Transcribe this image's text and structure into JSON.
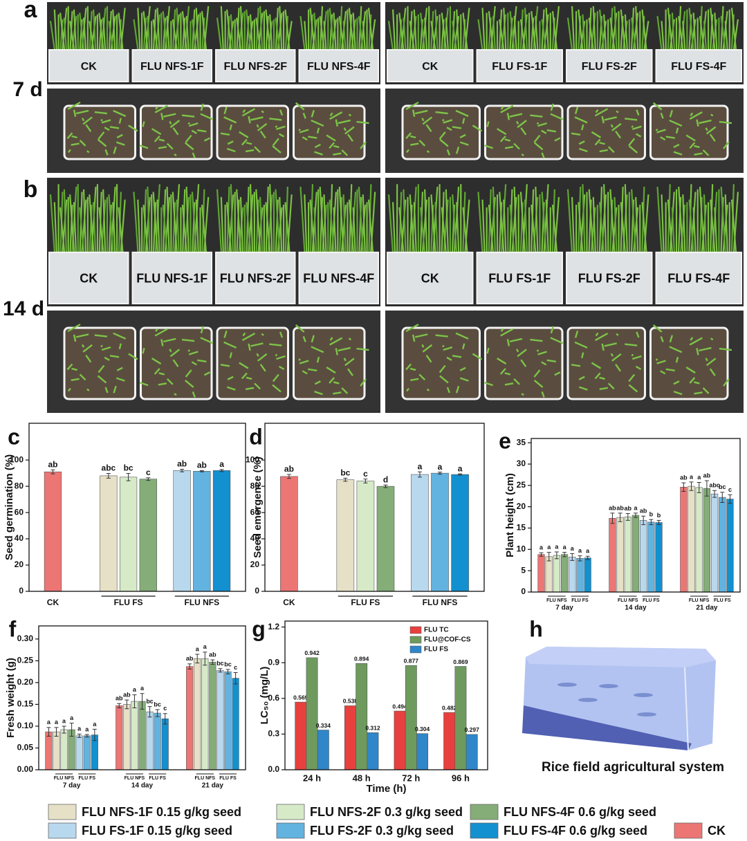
{
  "photos": [
    {
      "label": "a",
      "day": "7 d",
      "left": [
        "CK",
        "FLU NFS-1F",
        "FLU NFS-2F",
        "FLU NFS-4F"
      ],
      "right": [
        "CK",
        "FLU FS-1F",
        "FLU FS-2F",
        "FLU FS-4F"
      ]
    },
    {
      "label": "b",
      "day": "14 d",
      "left": [
        "CK",
        "FLU NFS-1F",
        "FLU NFS-2F",
        "FLU NFS-4F"
      ],
      "right": [
        "CK",
        "FLU FS-1F",
        "FLU FS-2F",
        "FLU FS-4F"
      ]
    }
  ],
  "chart_data": [
    {
      "type": "bar",
      "panel": "c",
      "y_label": "Seed germination (%)",
      "ylim": [
        0,
        128
      ],
      "yticks": [
        0,
        20,
        40,
        60,
        80,
        100
      ],
      "groups": [
        {
          "label": "CK",
          "values": [
            91
          ],
          "errors": [
            1.5
          ],
          "letters": [
            "ab"
          ],
          "colors": [
            "#ec7674"
          ]
        },
        {
          "label": "FLU FS",
          "values": [
            88,
            87,
            85.5
          ],
          "errors": [
            1.8,
            2.8,
            1
          ],
          "letters": [
            "abc",
            "bc",
            "c"
          ],
          "colors": [
            "#e6e0c6",
            "#d6eac8",
            "#84ad78"
          ]
        },
        {
          "label": "FLU NFS",
          "values": [
            92,
            91.5,
            92
          ],
          "errors": [
            1,
            0.5,
            0.8
          ],
          "letters": [
            "ab",
            "ab",
            "a"
          ],
          "colors": [
            "#b8d8ee",
            "#62b3e0",
            "#1290d0"
          ]
        }
      ]
    },
    {
      "type": "bar",
      "panel": "d",
      "y_label": "Seed emergence (%)",
      "ylim": [
        0,
        128
      ],
      "yticks": [
        0,
        20,
        40,
        60,
        80,
        100
      ],
      "groups": [
        {
          "label": "CK",
          "values": [
            87.5
          ],
          "errors": [
            1.5
          ],
          "letters": [
            "ab"
          ],
          "colors": [
            "#ec7674"
          ]
        },
        {
          "label": "FLU FS",
          "values": [
            85,
            84,
            80
          ],
          "errors": [
            1.2,
            1.5,
            1
          ],
          "letters": [
            "bc",
            "c",
            "d"
          ],
          "colors": [
            "#e6e0c6",
            "#d6eac8",
            "#84ad78"
          ]
        },
        {
          "label": "FLU NFS",
          "values": [
            89,
            90,
            89
          ],
          "errors": [
            2,
            0.8,
            0.5
          ],
          "letters": [
            "a",
            "a",
            "a"
          ],
          "colors": [
            "#b8d8ee",
            "#62b3e0",
            "#1290d0"
          ]
        }
      ]
    },
    {
      "type": "bar",
      "panel": "e",
      "y_label": "Plant height (cm)",
      "ylim": [
        0,
        36
      ],
      "yticks": [
        0,
        5,
        10,
        15,
        20,
        25,
        30,
        35
      ],
      "subgroups": [
        "FLU NFS",
        "FLU FS"
      ],
      "groups": [
        {
          "label": "7 day",
          "values": [
            8.8,
            8.3,
            8.6,
            8.8,
            8.2,
            7.9,
            8.0
          ],
          "errors": [
            0.4,
            1,
            0.8,
            0.5,
            0.8,
            0.6,
            0.4
          ],
          "letters": [
            "a",
            "a",
            "a",
            "a",
            "a",
            "a",
            "a"
          ],
          "colors": [
            "#ec7674",
            "#e6e0c6",
            "#d6eac8",
            "#84ad78",
            "#b8d8ee",
            "#62b3e0",
            "#1290d0"
          ]
        },
        {
          "label": "14 day",
          "values": [
            17.3,
            17.5,
            17.6,
            18.0,
            16.8,
            16.4,
            16.3
          ],
          "errors": [
            1.2,
            1,
            0.8,
            0.5,
            1,
            0.6,
            0.5
          ],
          "letters": [
            "ab",
            "ab",
            "ab",
            "a",
            "ab",
            "b",
            "b"
          ],
          "colors": [
            "#ec7674",
            "#e6e0c6",
            "#d6eac8",
            "#84ad78",
            "#b8d8ee",
            "#62b3e0",
            "#1290d0"
          ]
        },
        {
          "label": "21 day",
          "values": [
            24.6,
            24.8,
            24.5,
            24.3,
            23.0,
            22.2,
            21.8
          ],
          "errors": [
            1,
            1,
            1.2,
            1.8,
            0.8,
            1.2,
            1
          ],
          "letters": [
            "ab",
            "a",
            "a",
            "ab",
            "abc",
            "bc",
            "c"
          ],
          "colors": [
            "#ec7674",
            "#e6e0c6",
            "#d6eac8",
            "#84ad78",
            "#b8d8ee",
            "#62b3e0",
            "#1290d0"
          ]
        }
      ]
    },
    {
      "type": "bar",
      "panel": "f",
      "y_label": "Fresh weight (g)",
      "ylim": [
        0,
        0.33
      ],
      "yticks": [
        {
          "value": 0,
          "label": "0.00"
        },
        0.05,
        {
          "value": 0.1,
          "label": "0.10"
        },
        0.15,
        {
          "value": 0.2,
          "label": "0.20"
        },
        0.25,
        {
          "value": 0.3,
          "label": "0.30"
        }
      ],
      "subgroups": [
        "FLU NFS",
        "FLU FS"
      ],
      "groups": [
        {
          "label": "7 day",
          "values": [
            0.087,
            0.087,
            0.092,
            0.092,
            0.078,
            0.078,
            0.08
          ],
          "errors": [
            0.01,
            0.01,
            0.008,
            0.015,
            0.004,
            0.003,
            0.013
          ],
          "letters": [
            "a",
            "a",
            "a",
            "a",
            "a",
            "a",
            "a"
          ],
          "colors": [
            "#ec7674",
            "#e6e0c6",
            "#d6eac8",
            "#84ad78",
            "#b8d8ee",
            "#62b3e0",
            "#1290d0"
          ]
        },
        {
          "label": "14 day",
          "values": [
            0.147,
            0.15,
            0.157,
            0.157,
            0.133,
            0.13,
            0.117
          ],
          "errors": [
            0.005,
            0.01,
            0.015,
            0.018,
            0.012,
            0.008,
            0.012
          ],
          "letters": [
            "ab",
            "ab",
            "a",
            "a",
            "bc",
            "bc",
            "c"
          ],
          "colors": [
            "#ec7674",
            "#e6e0c6",
            "#d6eac8",
            "#84ad78",
            "#b8d8ee",
            "#62b3e0",
            "#1290d0"
          ]
        },
        {
          "label": "21 day",
          "values": [
            0.237,
            0.255,
            0.255,
            0.247,
            0.228,
            0.225,
            0.21
          ],
          "errors": [
            0.006,
            0.01,
            0.015,
            0.005,
            0.004,
            0.005,
            0.013
          ],
          "letters": [
            "ab",
            "a",
            "a",
            "ab",
            "bc",
            "bc",
            "c"
          ],
          "colors": [
            "#ec7674",
            "#e6e0c6",
            "#d6eac8",
            "#84ad78",
            "#b8d8ee",
            "#62b3e0",
            "#1290d0"
          ]
        }
      ]
    },
    {
      "type": "bar",
      "panel": "g",
      "y_label": "LC₅₀ (mg/L)",
      "x_label": "Time (h)",
      "ylim": [
        0,
        1.25
      ],
      "yticks": [
        {
          "value": 0,
          "label": "0.0"
        },
        0.3,
        0.6,
        0.9,
        1.2
      ],
      "categories": [
        "24 h",
        "48 h",
        "72 h",
        "96 h"
      ],
      "series": [
        {
          "name": "FLU TC",
          "color": "#e8403e",
          "values": [
            0.569,
            0.538,
            0.494,
            0.482
          ]
        },
        {
          "name": "FLU@COF-CS",
          "color": "#6e9a5e",
          "values": [
            0.942,
            0.894,
            0.877,
            0.869
          ]
        },
        {
          "name": "FLU FS",
          "color": "#2f86c9",
          "values": [
            0.334,
            0.312,
            0.304,
            0.297
          ]
        }
      ]
    }
  ],
  "panel_h": {
    "label": "h",
    "caption": "Rice field agricultural system"
  },
  "legend": [
    {
      "name": "FLU NFS-1F 0.15 g/kg seed",
      "color": "#e6e0c6"
    },
    {
      "name": "FLU NFS-2F 0.3 g/kg seed",
      "color": "#d6eac8"
    },
    {
      "name": "FLU NFS-4F 0.6 g/kg seed",
      "color": "#84ad78"
    },
    {
      "name": "FLU FS-1F 0.15 g/kg seed",
      "color": "#b8d8ee"
    },
    {
      "name": "FLU FS-2F 0.3 g/kg seed",
      "color": "#62b3e0"
    },
    {
      "name": "FLU FS-4F 0.6 g/kg seed",
      "color": "#1290d0"
    },
    {
      "name": "CK",
      "color": "#ec7674"
    }
  ]
}
